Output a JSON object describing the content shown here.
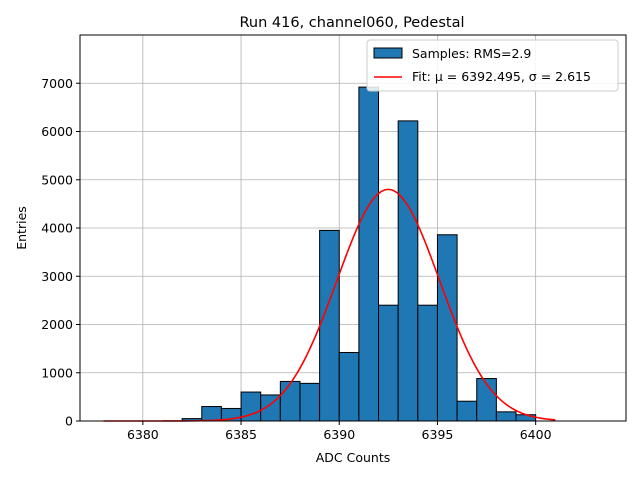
{
  "chart_data": {
    "type": "bar",
    "title": "Run 416, channel060, Pedestal",
    "xlabel": "ADC Counts",
    "ylabel": "Entries",
    "xlim": [
      6376.8,
      6404.6
    ],
    "ylim": [
      0,
      8000
    ],
    "xticks": [
      6380,
      6385,
      6390,
      6395,
      6400
    ],
    "yticks": [
      0,
      1000,
      2000,
      3000,
      4000,
      5000,
      6000,
      7000
    ],
    "grid": true,
    "legend_position": "top-right",
    "bar_color": "#1f77b4",
    "fit_color": "#ff0000",
    "bin_width": 1,
    "bins": [
      {
        "left": 6382,
        "count": 50
      },
      {
        "left": 6383,
        "count": 300
      },
      {
        "left": 6384,
        "count": 260
      },
      {
        "left": 6385,
        "count": 600
      },
      {
        "left": 6386,
        "count": 540
      },
      {
        "left": 6387,
        "count": 820
      },
      {
        "left": 6388,
        "count": 780
      },
      {
        "left": 6389,
        "count": 3950
      },
      {
        "left": 6390,
        "count": 1420
      },
      {
        "left": 6391,
        "count": 6920
      },
      {
        "left": 6392,
        "count": 2400
      },
      {
        "left": 6393,
        "count": 6220
      },
      {
        "left": 6394,
        "count": 2400
      },
      {
        "left": 6395,
        "count": 3860
      },
      {
        "left": 6396,
        "count": 410
      },
      {
        "left": 6397,
        "count": 880
      },
      {
        "left": 6398,
        "count": 190
      },
      {
        "left": 6399,
        "count": 130
      }
    ],
    "fit": {
      "mu": 6392.495,
      "sigma": 2.615,
      "amplitude": 4800,
      "x_range": [
        6378,
        6401
      ]
    },
    "series": [
      {
        "name": "Samples: RMS=2.9",
        "kind": "histogram"
      },
      {
        "name": "Fit: μ = 6392.495, σ = 2.615",
        "kind": "line"
      }
    ]
  }
}
